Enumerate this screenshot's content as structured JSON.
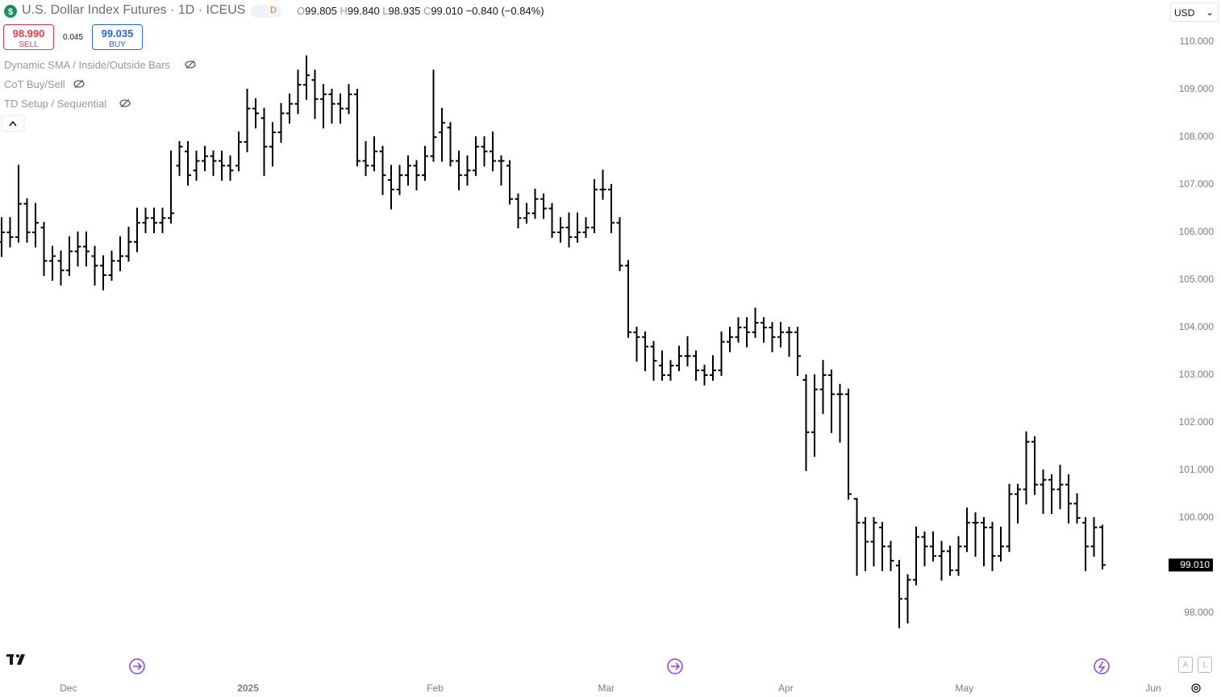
{
  "header": {
    "title": "U.S. Dollar Index Futures · 1D · ICEUS",
    "badge": "D",
    "ohlc": [
      {
        "key": "O",
        "value": "99.805"
      },
      {
        "key": "H",
        "value": "99.840"
      },
      {
        "key": "L",
        "value": "98.935"
      },
      {
        "key": "C",
        "value": "99.010"
      }
    ],
    "change": "−0.840 (−0.84%)",
    "sell": {
      "price": "98.990",
      "label": "SELL"
    },
    "spread": "0.045",
    "buy": {
      "price": "99.035",
      "label": "BUY"
    },
    "indicators": [
      "Dynamic SMA / Inside/Outside Bars",
      "CoT Buy/Sell",
      "TD Setup / Sequential"
    ],
    "currency": "USD",
    "scale_buttons": [
      "A",
      "L"
    ]
  },
  "chart_data": {
    "type": "ohlc",
    "color": "#000000",
    "ylim": [
      96.644,
      110.881
    ],
    "yticks": [
      {
        "value": 98,
        "label": "98.000"
      },
      {
        "value": 100,
        "label": "100.000"
      },
      {
        "value": 101,
        "label": "101.000"
      },
      {
        "value": 102,
        "label": "102.000"
      },
      {
        "value": 103,
        "label": "103.000"
      },
      {
        "value": 104,
        "label": "104.000"
      },
      {
        "value": 105,
        "label": "105.000"
      },
      {
        "value": 106,
        "label": "106.000"
      },
      {
        "value": 107,
        "label": "107.000"
      },
      {
        "value": 108,
        "label": "108.000"
      },
      {
        "value": 109,
        "label": "109.000"
      },
      {
        "value": 110,
        "label": "110.000"
      }
    ],
    "xlim": [
      -0.19,
      144
    ],
    "xticks": [
      {
        "value": 7.9,
        "label": "Dec"
      },
      {
        "value": 29.1,
        "label": "2025"
      },
      {
        "value": 51.2,
        "label": "Feb"
      },
      {
        "value": 71.4,
        "label": "Mar"
      },
      {
        "value": 92.6,
        "label": "Apr"
      },
      {
        "value": 113.7,
        "label": "May"
      },
      {
        "value": 136,
        "label": "Jun"
      }
    ],
    "last_label": "99.010",
    "ohlc": [
      [
        105.8,
        106.3,
        105.5,
        106.0
      ],
      [
        106.0,
        106.3,
        105.7,
        105.9
      ],
      [
        105.9,
        107.4,
        105.8,
        106.6
      ],
      [
        106.6,
        106.7,
        105.8,
        106.0
      ],
      [
        106.0,
        106.6,
        105.7,
        106.2
      ],
      [
        106.1,
        106.2,
        105.1,
        105.4
      ],
      [
        105.4,
        105.7,
        105.0,
        105.5
      ],
      [
        105.4,
        105.6,
        104.9,
        105.2
      ],
      [
        105.2,
        105.9,
        105.1,
        105.6
      ],
      [
        105.6,
        106.0,
        105.3,
        105.7
      ],
      [
        105.7,
        106.0,
        105.3,
        105.6
      ],
      [
        105.5,
        105.7,
        104.9,
        105.3
      ],
      [
        105.3,
        105.5,
        104.8,
        105.1
      ],
      [
        105.1,
        105.6,
        105.0,
        105.4
      ],
      [
        105.4,
        105.9,
        105.2,
        105.5
      ],
      [
        105.5,
        106.1,
        105.4,
        105.8
      ],
      [
        105.8,
        106.5,
        105.6,
        106.2
      ],
      [
        106.2,
        106.5,
        106.0,
        106.3
      ],
      [
        106.3,
        106.5,
        106.0,
        106.2
      ],
      [
        106.2,
        106.5,
        106.0,
        106.3
      ],
      [
        106.3,
        107.7,
        106.2,
        106.4
      ],
      [
        107.4,
        107.9,
        107.2,
        107.8
      ],
      [
        107.7,
        107.9,
        107.0,
        107.2
      ],
      [
        107.3,
        107.7,
        107.1,
        107.5
      ],
      [
        107.5,
        107.8,
        107.3,
        107.6
      ],
      [
        107.6,
        107.7,
        107.2,
        107.5
      ],
      [
        107.5,
        107.7,
        107.1,
        107.4
      ],
      [
        107.4,
        107.6,
        107.1,
        107.3
      ],
      [
        107.4,
        108.1,
        107.3,
        107.9
      ],
      [
        107.9,
        109.0,
        107.7,
        108.6
      ],
      [
        108.6,
        108.8,
        108.2,
        108.5
      ],
      [
        108.4,
        108.6,
        107.2,
        107.8
      ],
      [
        107.8,
        108.3,
        107.4,
        108.1
      ],
      [
        108.1,
        108.7,
        107.9,
        108.5
      ],
      [
        108.5,
        108.9,
        108.3,
        108.7
      ],
      [
        108.7,
        109.4,
        108.5,
        109.1
      ],
      [
        109.1,
        109.7,
        108.8,
        109.3
      ],
      [
        109.2,
        109.4,
        108.4,
        108.8
      ],
      [
        108.8,
        109.1,
        108.2,
        108.9
      ],
      [
        108.9,
        109.0,
        108.3,
        108.7
      ],
      [
        108.7,
        108.9,
        108.3,
        108.6
      ],
      [
        108.6,
        109.1,
        108.5,
        108.9
      ],
      [
        108.9,
        109.0,
        107.4,
        107.5
      ],
      [
        107.5,
        107.9,
        107.2,
        107.4
      ],
      [
        107.4,
        108.0,
        107.3,
        107.7
      ],
      [
        107.7,
        107.8,
        106.8,
        107.2
      ],
      [
        107.1,
        107.4,
        106.5,
        106.9
      ],
      [
        106.9,
        107.4,
        106.8,
        107.2
      ],
      [
        107.2,
        107.6,
        107.0,
        107.4
      ],
      [
        107.4,
        107.5,
        106.9,
        107.2
      ],
      [
        107.2,
        107.8,
        107.1,
        107.6
      ],
      [
        107.6,
        109.4,
        107.5,
        108.0
      ],
      [
        108.1,
        108.6,
        107.5,
        108.3
      ],
      [
        108.2,
        108.3,
        107.4,
        107.5
      ],
      [
        107.5,
        107.7,
        106.9,
        107.2
      ],
      [
        107.2,
        107.6,
        107.0,
        107.3
      ],
      [
        107.3,
        108.0,
        107.2,
        107.8
      ],
      [
        107.8,
        108.0,
        107.4,
        107.7
      ],
      [
        107.7,
        108.1,
        107.3,
        107.5
      ],
      [
        107.5,
        107.6,
        107.0,
        107.5
      ],
      [
        107.4,
        107.5,
        106.6,
        106.7
      ],
      [
        106.7,
        106.8,
        106.1,
        106.3
      ],
      [
        106.3,
        106.6,
        106.2,
        106.4
      ],
      [
        106.4,
        106.9,
        106.3,
        106.7
      ],
      [
        106.7,
        106.8,
        106.3,
        106.5
      ],
      [
        106.5,
        106.6,
        105.9,
        106.0
      ],
      [
        106.0,
        106.3,
        105.8,
        106.1
      ],
      [
        106.1,
        106.4,
        105.7,
        105.9
      ],
      [
        105.9,
        106.4,
        105.8,
        106.0
      ],
      [
        106.0,
        106.3,
        105.9,
        106.1
      ],
      [
        106.1,
        107.1,
        106.0,
        106.9
      ],
      [
        106.9,
        107.3,
        106.7,
        106.9
      ],
      [
        106.9,
        107.0,
        106.0,
        106.2
      ],
      [
        106.2,
        106.3,
        105.2,
        105.3
      ],
      [
        105.3,
        105.4,
        103.8,
        103.9
      ],
      [
        103.9,
        104.0,
        103.3,
        103.8
      ],
      [
        103.8,
        103.9,
        103.1,
        103.6
      ],
      [
        103.6,
        103.7,
        102.9,
        103.3
      ],
      [
        103.2,
        103.5,
        102.9,
        103.0
      ],
      [
        103.0,
        103.3,
        102.9,
        103.2
      ],
      [
        103.2,
        103.6,
        103.1,
        103.4
      ],
      [
        103.4,
        103.8,
        103.2,
        103.4
      ],
      [
        103.4,
        103.5,
        102.9,
        103.1
      ],
      [
        103.1,
        103.2,
        102.8,
        103.0
      ],
      [
        103.0,
        103.4,
        102.9,
        103.1
      ],
      [
        103.1,
        103.9,
        103.0,
        103.7
      ],
      [
        103.7,
        104.0,
        103.5,
        103.8
      ],
      [
        103.8,
        104.2,
        103.7,
        104.0
      ],
      [
        104.0,
        104.2,
        103.6,
        103.9
      ],
      [
        103.9,
        104.4,
        103.8,
        104.1
      ],
      [
        104.1,
        104.2,
        103.7,
        104.0
      ],
      [
        104.0,
        104.1,
        103.5,
        103.8
      ],
      [
        103.8,
        104.1,
        103.6,
        103.9
      ],
      [
        103.9,
        104.0,
        103.4,
        103.9
      ],
      [
        103.9,
        104.0,
        103.0,
        103.4
      ],
      [
        102.9,
        103.0,
        101.0,
        101.8
      ],
      [
        101.8,
        103.0,
        101.3,
        102.7
      ],
      [
        102.7,
        103.3,
        102.2,
        103.0
      ],
      [
        103.0,
        103.1,
        101.8,
        102.6
      ],
      [
        102.6,
        102.8,
        101.6,
        102.6
      ],
      [
        102.6,
        102.7,
        100.4,
        100.5
      ],
      [
        100.4,
        100.4,
        98.8,
        99.9
      ],
      [
        99.9,
        100.0,
        98.9,
        99.5
      ],
      [
        99.5,
        100.0,
        99.0,
        99.9
      ],
      [
        99.8,
        99.9,
        98.9,
        99.4
      ],
      [
        99.4,
        99.5,
        98.9,
        99.1
      ],
      [
        99.0,
        99.1,
        97.7,
        98.3
      ],
      [
        98.3,
        98.8,
        97.8,
        98.7
      ],
      [
        98.7,
        99.8,
        98.6,
        99.6
      ],
      [
        99.6,
        99.7,
        99.0,
        99.4
      ],
      [
        99.4,
        99.7,
        99.1,
        99.2
      ],
      [
        99.2,
        99.5,
        98.7,
        99.3
      ],
      [
        99.3,
        99.4,
        98.8,
        98.9
      ],
      [
        98.9,
        99.6,
        98.8,
        99.4
      ],
      [
        99.4,
        100.2,
        99.3,
        99.9
      ],
      [
        99.9,
        100.1,
        99.2,
        99.9
      ],
      [
        99.9,
        100.0,
        99.0,
        99.8
      ],
      [
        99.8,
        99.9,
        98.9,
        99.2
      ],
      [
        99.2,
        99.8,
        99.1,
        99.4
      ],
      [
        99.4,
        100.7,
        99.3,
        100.5
      ],
      [
        100.5,
        100.7,
        99.9,
        100.6
      ],
      [
        100.6,
        101.8,
        100.3,
        101.6
      ],
      [
        101.6,
        101.7,
        100.5,
        100.7
      ],
      [
        100.7,
        101.0,
        100.1,
        100.8
      ],
      [
        100.8,
        100.9,
        100.1,
        100.6
      ],
      [
        100.6,
        101.1,
        100.2,
        100.7
      ],
      [
        100.7,
        100.9,
        99.9,
        100.3
      ],
      [
        100.3,
        100.5,
        99.9,
        100.0
      ],
      [
        99.9,
        100.0,
        98.9,
        99.4
      ],
      [
        99.4,
        100.0,
        99.2,
        99.8
      ],
      [
        99.805,
        99.84,
        98.935,
        99.01
      ]
    ]
  }
}
